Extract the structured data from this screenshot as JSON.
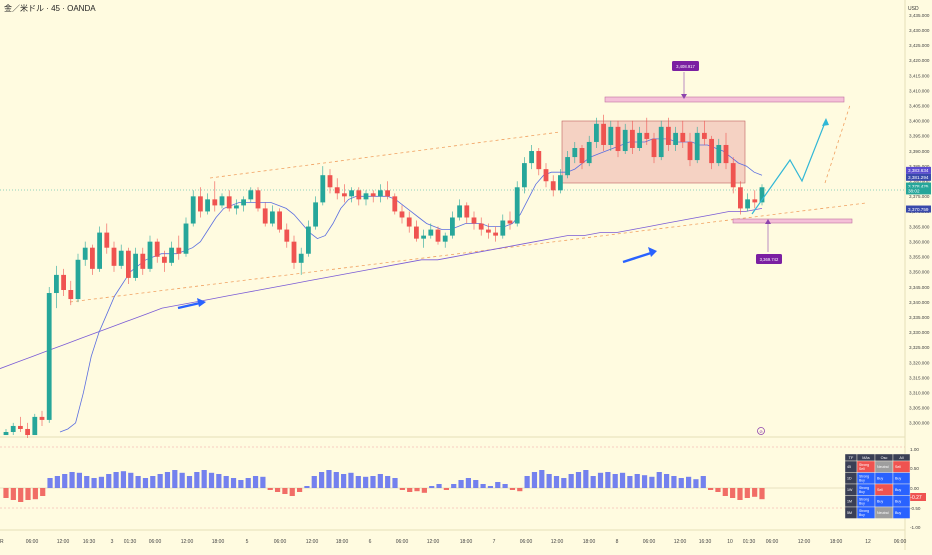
{
  "header": {
    "title": "金／米ドル · 45 · OANDA",
    "currency": "USD"
  },
  "colors": {
    "up": "#26a69a",
    "down": "#ef5350",
    "bg": "#fffbe0",
    "ema_fast": "#5b6ee0",
    "ema_slow": "#7a5bd6",
    "arrow": "#2962ff",
    "projection": "#31b7d6"
  },
  "price_axis": {
    "ticks": [
      "3,435.000",
      "3,430.000",
      "3,425.000",
      "3,420.000",
      "3,415.000",
      "3,410.000",
      "3,405.000",
      "3,400.000",
      "3,395.000",
      "3,390.000",
      "3,385.000",
      "3,380.000",
      "3,375.000",
      "3,370.000",
      "3,365.000",
      "3,360.000",
      "3,355.000",
      "3,350.000",
      "3,345.000",
      "3,340.000",
      "3,335.000",
      "3,330.000",
      "3,325.000",
      "3,320.000",
      "3,315.000",
      "3,310.000",
      "3,305.000",
      "3,300.000"
    ],
    "labels": [
      {
        "text": "3,383.634",
        "price": 3383.6,
        "color": "#5b4bd0"
      },
      {
        "text": "3,381.294",
        "price": 3381.3,
        "color": "#3949ab"
      },
      {
        "text": "3,378.425",
        "price": 3378.4,
        "color": "#26a69a"
      },
      {
        "text": "38:02",
        "price": 3376.8,
        "color": "#26a69a"
      },
      {
        "text": "3,370.759",
        "price": 3370.8,
        "color": "#3949ab"
      }
    ]
  },
  "annotations": {
    "top_level": "3,408.917",
    "bottom_level": "3,369.742",
    "event_marker": "⊘"
  },
  "time_axis": [
    "R",
    "06:00",
    "12:00",
    "16:30",
    "3",
    "01:30",
    "06:00",
    "12:00",
    "18:00",
    "5",
    "06:00",
    "12:00",
    "18:00",
    "6",
    "06:00",
    "12:00",
    "18:00",
    "7",
    "06:00",
    "12:00",
    "18:00",
    "8",
    "06:00",
    "12:00",
    "16:30",
    "10",
    "01:30",
    "06:00",
    "12:00",
    "18:00",
    "12",
    "06:00"
  ],
  "oscillator_axis": [
    "1.00",
    "0.50",
    "0.00",
    "-0.50",
    "-1.00"
  ],
  "oscillator_value": "-0.27",
  "rating_table": {
    "headers": [
      "TF",
      "MAs",
      "Osc",
      "All"
    ],
    "rows": [
      {
        "tf": "45",
        "mas": "Strong Sell",
        "osc": "Neutral",
        "all": "Sell",
        "c1": "#ef5350",
        "c2": "#9e9e9e",
        "c3": "#ef5350"
      },
      {
        "tf": "1D",
        "mas": "Strong Buy",
        "osc": "Buy",
        "all": "Buy",
        "c1": "#2962ff",
        "c2": "#2962ff",
        "c3": "#2962ff"
      },
      {
        "tf": "1W",
        "mas": "Strong Buy",
        "osc": "Sell",
        "all": "Buy",
        "c1": "#2962ff",
        "c2": "#ef5350",
        "c3": "#2962ff"
      },
      {
        "tf": "1M",
        "mas": "Strong Buy",
        "osc": "Buy",
        "all": "Buy",
        "c1": "#2962ff",
        "c2": "#2962ff",
        "c3": "#2962ff"
      },
      {
        "tf": "5M",
        "mas": "Strong Buy",
        "osc": "Neutral",
        "all": "Buy",
        "c1": "#2962ff",
        "c2": "#9e9e9e",
        "c3": "#2962ff"
      }
    ]
  },
  "chart_data": {
    "type": "candlestick",
    "title": "金／米ドル · 45 · OANDA",
    "y_unit": "USD",
    "ylim": [
      3297,
      3438
    ],
    "oscillator_ylim": [
      -1,
      1
    ],
    "grid": false,
    "candles": [
      [
        3296,
        3298,
        3296,
        3297
      ],
      [
        3297,
        3300,
        3296,
        3299
      ],
      [
        3299,
        3302,
        3297,
        3298
      ],
      [
        3298,
        3300,
        3295,
        3296
      ],
      [
        3296,
        3303,
        3296,
        3302
      ],
      [
        3302,
        3304,
        3299,
        3301
      ],
      [
        3301,
        3345,
        3300,
        3343
      ],
      [
        3343,
        3352,
        3338,
        3349
      ],
      [
        3349,
        3351,
        3342,
        3344
      ],
      [
        3344,
        3347,
        3339,
        3341
      ],
      [
        3341,
        3356,
        3340,
        3354
      ],
      [
        3354,
        3360,
        3352,
        3358
      ],
      [
        3358,
        3359,
        3349,
        3351
      ],
      [
        3351,
        3365,
        3350,
        3363
      ],
      [
        3363,
        3366,
        3356,
        3358
      ],
      [
        3358,
        3360,
        3350,
        3352
      ],
      [
        3352,
        3359,
        3351,
        3357
      ],
      [
        3357,
        3358,
        3346,
        3348
      ],
      [
        3348,
        3358,
        3347,
        3356
      ],
      [
        3356,
        3358,
        3349,
        3351
      ],
      [
        3351,
        3362,
        3350,
        3360
      ],
      [
        3360,
        3361,
        3353,
        3355
      ],
      [
        3355,
        3357,
        3350,
        3353
      ],
      [
        3353,
        3360,
        3352,
        3358
      ],
      [
        3358,
        3362,
        3354,
        3356
      ],
      [
        3356,
        3368,
        3355,
        3366
      ],
      [
        3366,
        3377,
        3365,
        3375
      ],
      [
        3375,
        3378,
        3368,
        3370
      ],
      [
        3370,
        3376,
        3369,
        3374
      ],
      [
        3374,
        3380,
        3370,
        3372
      ],
      [
        3372,
        3376,
        3371,
        3375
      ],
      [
        3375,
        3377,
        3370,
        3371
      ],
      [
        3371,
        3374,
        3369,
        3372
      ],
      [
        3372,
        3375,
        3370,
        3374
      ],
      [
        3374,
        3378,
        3373,
        3377
      ],
      [
        3377,
        3378,
        3370,
        3371
      ],
      [
        3371,
        3373,
        3365,
        3366
      ],
      [
        3366,
        3372,
        3365,
        3370
      ],
      [
        3370,
        3371,
        3363,
        3364
      ],
      [
        3364,
        3366,
        3358,
        3360
      ],
      [
        3360,
        3362,
        3351,
        3353
      ],
      [
        3353,
        3358,
        3349,
        3356
      ],
      [
        3356,
        3367,
        3355,
        3365
      ],
      [
        3365,
        3375,
        3364,
        3373
      ],
      [
        3373,
        3385,
        3372,
        3382
      ],
      [
        3382,
        3384,
        3376,
        3378
      ],
      [
        3378,
        3381,
        3374,
        3376
      ],
      [
        3376,
        3379,
        3373,
        3375
      ],
      [
        3375,
        3378,
        3373,
        3377
      ],
      [
        3377,
        3378,
        3372,
        3374
      ],
      [
        3374,
        3377,
        3372,
        3376
      ],
      [
        3376,
        3377,
        3373,
        3375
      ],
      [
        3375,
        3379,
        3373,
        3377
      ],
      [
        3377,
        3380,
        3374,
        3375
      ],
      [
        3375,
        3376,
        3369,
        3370
      ],
      [
        3370,
        3372,
        3366,
        3368
      ],
      [
        3368,
        3370,
        3363,
        3365
      ],
      [
        3365,
        3367,
        3360,
        3361
      ],
      [
        3361,
        3364,
        3358,
        3362
      ],
      [
        3362,
        3366,
        3361,
        3364
      ],
      [
        3364,
        3365,
        3359,
        3360
      ],
      [
        3360,
        3363,
        3358,
        3362
      ],
      [
        3362,
        3370,
        3361,
        3368
      ],
      [
        3368,
        3374,
        3367,
        3372
      ],
      [
        3372,
        3373,
        3366,
        3368
      ],
      [
        3368,
        3370,
        3364,
        3366
      ],
      [
        3366,
        3368,
        3362,
        3364
      ],
      [
        3364,
        3366,
        3361,
        3363
      ],
      [
        3363,
        3365,
        3360,
        3362
      ],
      [
        3362,
        3369,
        3361,
        3367
      ],
      [
        3367,
        3370,
        3364,
        3366
      ],
      [
        3366,
        3380,
        3365,
        3378
      ],
      [
        3378,
        3388,
        3376,
        3386
      ],
      [
        3386,
        3392,
        3384,
        3390
      ],
      [
        3390,
        3391,
        3382,
        3384
      ],
      [
        3384,
        3386,
        3378,
        3380
      ],
      [
        3380,
        3382,
        3375,
        3377
      ],
      [
        3377,
        3384,
        3376,
        3382
      ],
      [
        3382,
        3390,
        3381,
        3388
      ],
      [
        3388,
        3393,
        3386,
        3391
      ],
      [
        3391,
        3392,
        3384,
        3386
      ],
      [
        3386,
        3395,
        3385,
        3393
      ],
      [
        3393,
        3401,
        3391,
        3399
      ],
      [
        3399,
        3402,
        3390,
        3392
      ],
      [
        3392,
        3400,
        3390,
        3398
      ],
      [
        3398,
        3400,
        3388,
        3390
      ],
      [
        3390,
        3399,
        3389,
        3397
      ],
      [
        3397,
        3400,
        3389,
        3391
      ],
      [
        3391,
        3398,
        3390,
        3396
      ],
      [
        3396,
        3401,
        3392,
        3394
      ],
      [
        3394,
        3396,
        3386,
        3388
      ],
      [
        3388,
        3400,
        3387,
        3398
      ],
      [
        3398,
        3401,
        3390,
        3392
      ],
      [
        3392,
        3398,
        3390,
        3396
      ],
      [
        3396,
        3400,
        3391,
        3393
      ],
      [
        3393,
        3396,
        3385,
        3387
      ],
      [
        3387,
        3398,
        3386,
        3396
      ],
      [
        3396,
        3400,
        3392,
        3394
      ],
      [
        3394,
        3395,
        3384,
        3386
      ],
      [
        3386,
        3394,
        3385,
        3392
      ],
      [
        3392,
        3396,
        3384,
        3386
      ],
      [
        3386,
        3388,
        3376,
        3378
      ],
      [
        3378,
        3380,
        3369,
        3371
      ],
      [
        3371,
        3376,
        3370,
        3374
      ],
      [
        3374,
        3377,
        3371,
        3373
      ],
      [
        3373,
        3379,
        3372,
        3378
      ]
    ],
    "ema_fast": [
      3297,
      3298,
      3300,
      3310,
      3322,
      3330,
      3336,
      3342,
      3346,
      3350,
      3352,
      3354,
      3355,
      3356,
      3356,
      3356,
      3357,
      3358,
      3360,
      3364,
      3368,
      3371,
      3372,
      3373,
      3373,
      3373,
      3373,
      3373,
      3372,
      3371,
      3369,
      3366,
      3363,
      3361,
      3362,
      3366,
      3371,
      3374,
      3375,
      3375,
      3375,
      3375,
      3375,
      3374,
      3372,
      3370,
      3368,
      3366,
      3365,
      3364,
      3364,
      3365,
      3366,
      3366,
      3366,
      3365,
      3365,
      3365,
      3366,
      3369,
      3374,
      3379,
      3382,
      3383,
      3383,
      3383,
      3384,
      3386,
      3388,
      3389,
      3390,
      3391,
      3392,
      3393,
      3393,
      3393,
      3394,
      3394,
      3394,
      3393,
      3393,
      3393,
      3392,
      3392,
      3391,
      3390,
      3388,
      3386,
      3385,
      3383,
      3382
    ],
    "ema_slow": [
      3318,
      3320,
      3322,
      3324,
      3326,
      3328,
      3330,
      3332,
      3334,
      3336,
      3338,
      3339,
      3340,
      3341,
      3342,
      3343,
      3344,
      3345,
      3346,
      3347,
      3348,
      3349,
      3350,
      3351,
      3352,
      3353,
      3354,
      3354,
      3355,
      3356,
      3357,
      3358,
      3359,
      3360,
      3361,
      3362,
      3362,
      3363,
      3363,
      3364,
      3365,
      3366,
      3367,
      3368,
      3369,
      3370,
      3370,
      3371
    ],
    "oscillator": [
      -0.25,
      -0.3,
      -0.35,
      -0.3,
      -0.28,
      -0.2,
      0.25,
      0.3,
      0.35,
      0.4,
      0.38,
      0.3,
      0.25,
      0.28,
      0.35,
      0.4,
      0.42,
      0.38,
      0.3,
      0.25,
      0.3,
      0.35,
      0.4,
      0.45,
      0.38,
      0.3,
      0.4,
      0.45,
      0.38,
      0.35,
      0.3,
      0.25,
      0.2,
      0.25,
      0.3,
      0.28,
      -0.05,
      -0.1,
      -0.15,
      -0.2,
      -0.1,
      0.05,
      0.3,
      0.4,
      0.45,
      0.4,
      0.35,
      0.38,
      0.3,
      0.28,
      0.3,
      0.35,
      0.3,
      0.25,
      -0.05,
      -0.1,
      -0.08,
      -0.12,
      0.05,
      0.1,
      -0.05,
      0.1,
      0.2,
      0.25,
      0.2,
      0.1,
      0.05,
      0.15,
      0.1,
      -0.05,
      -0.08,
      0.3,
      0.4,
      0.45,
      0.35,
      0.3,
      0.25,
      0.35,
      0.4,
      0.45,
      0.3,
      0.38,
      0.4,
      0.35,
      0.38,
      0.3,
      0.35,
      0.32,
      0.28,
      0.4,
      0.35,
      0.3,
      0.25,
      0.28,
      0.22,
      0.3,
      -0.05,
      -0.1,
      -0.2,
      -0.25,
      -0.3,
      -0.25,
      -0.22,
      -0.28
    ]
  }
}
